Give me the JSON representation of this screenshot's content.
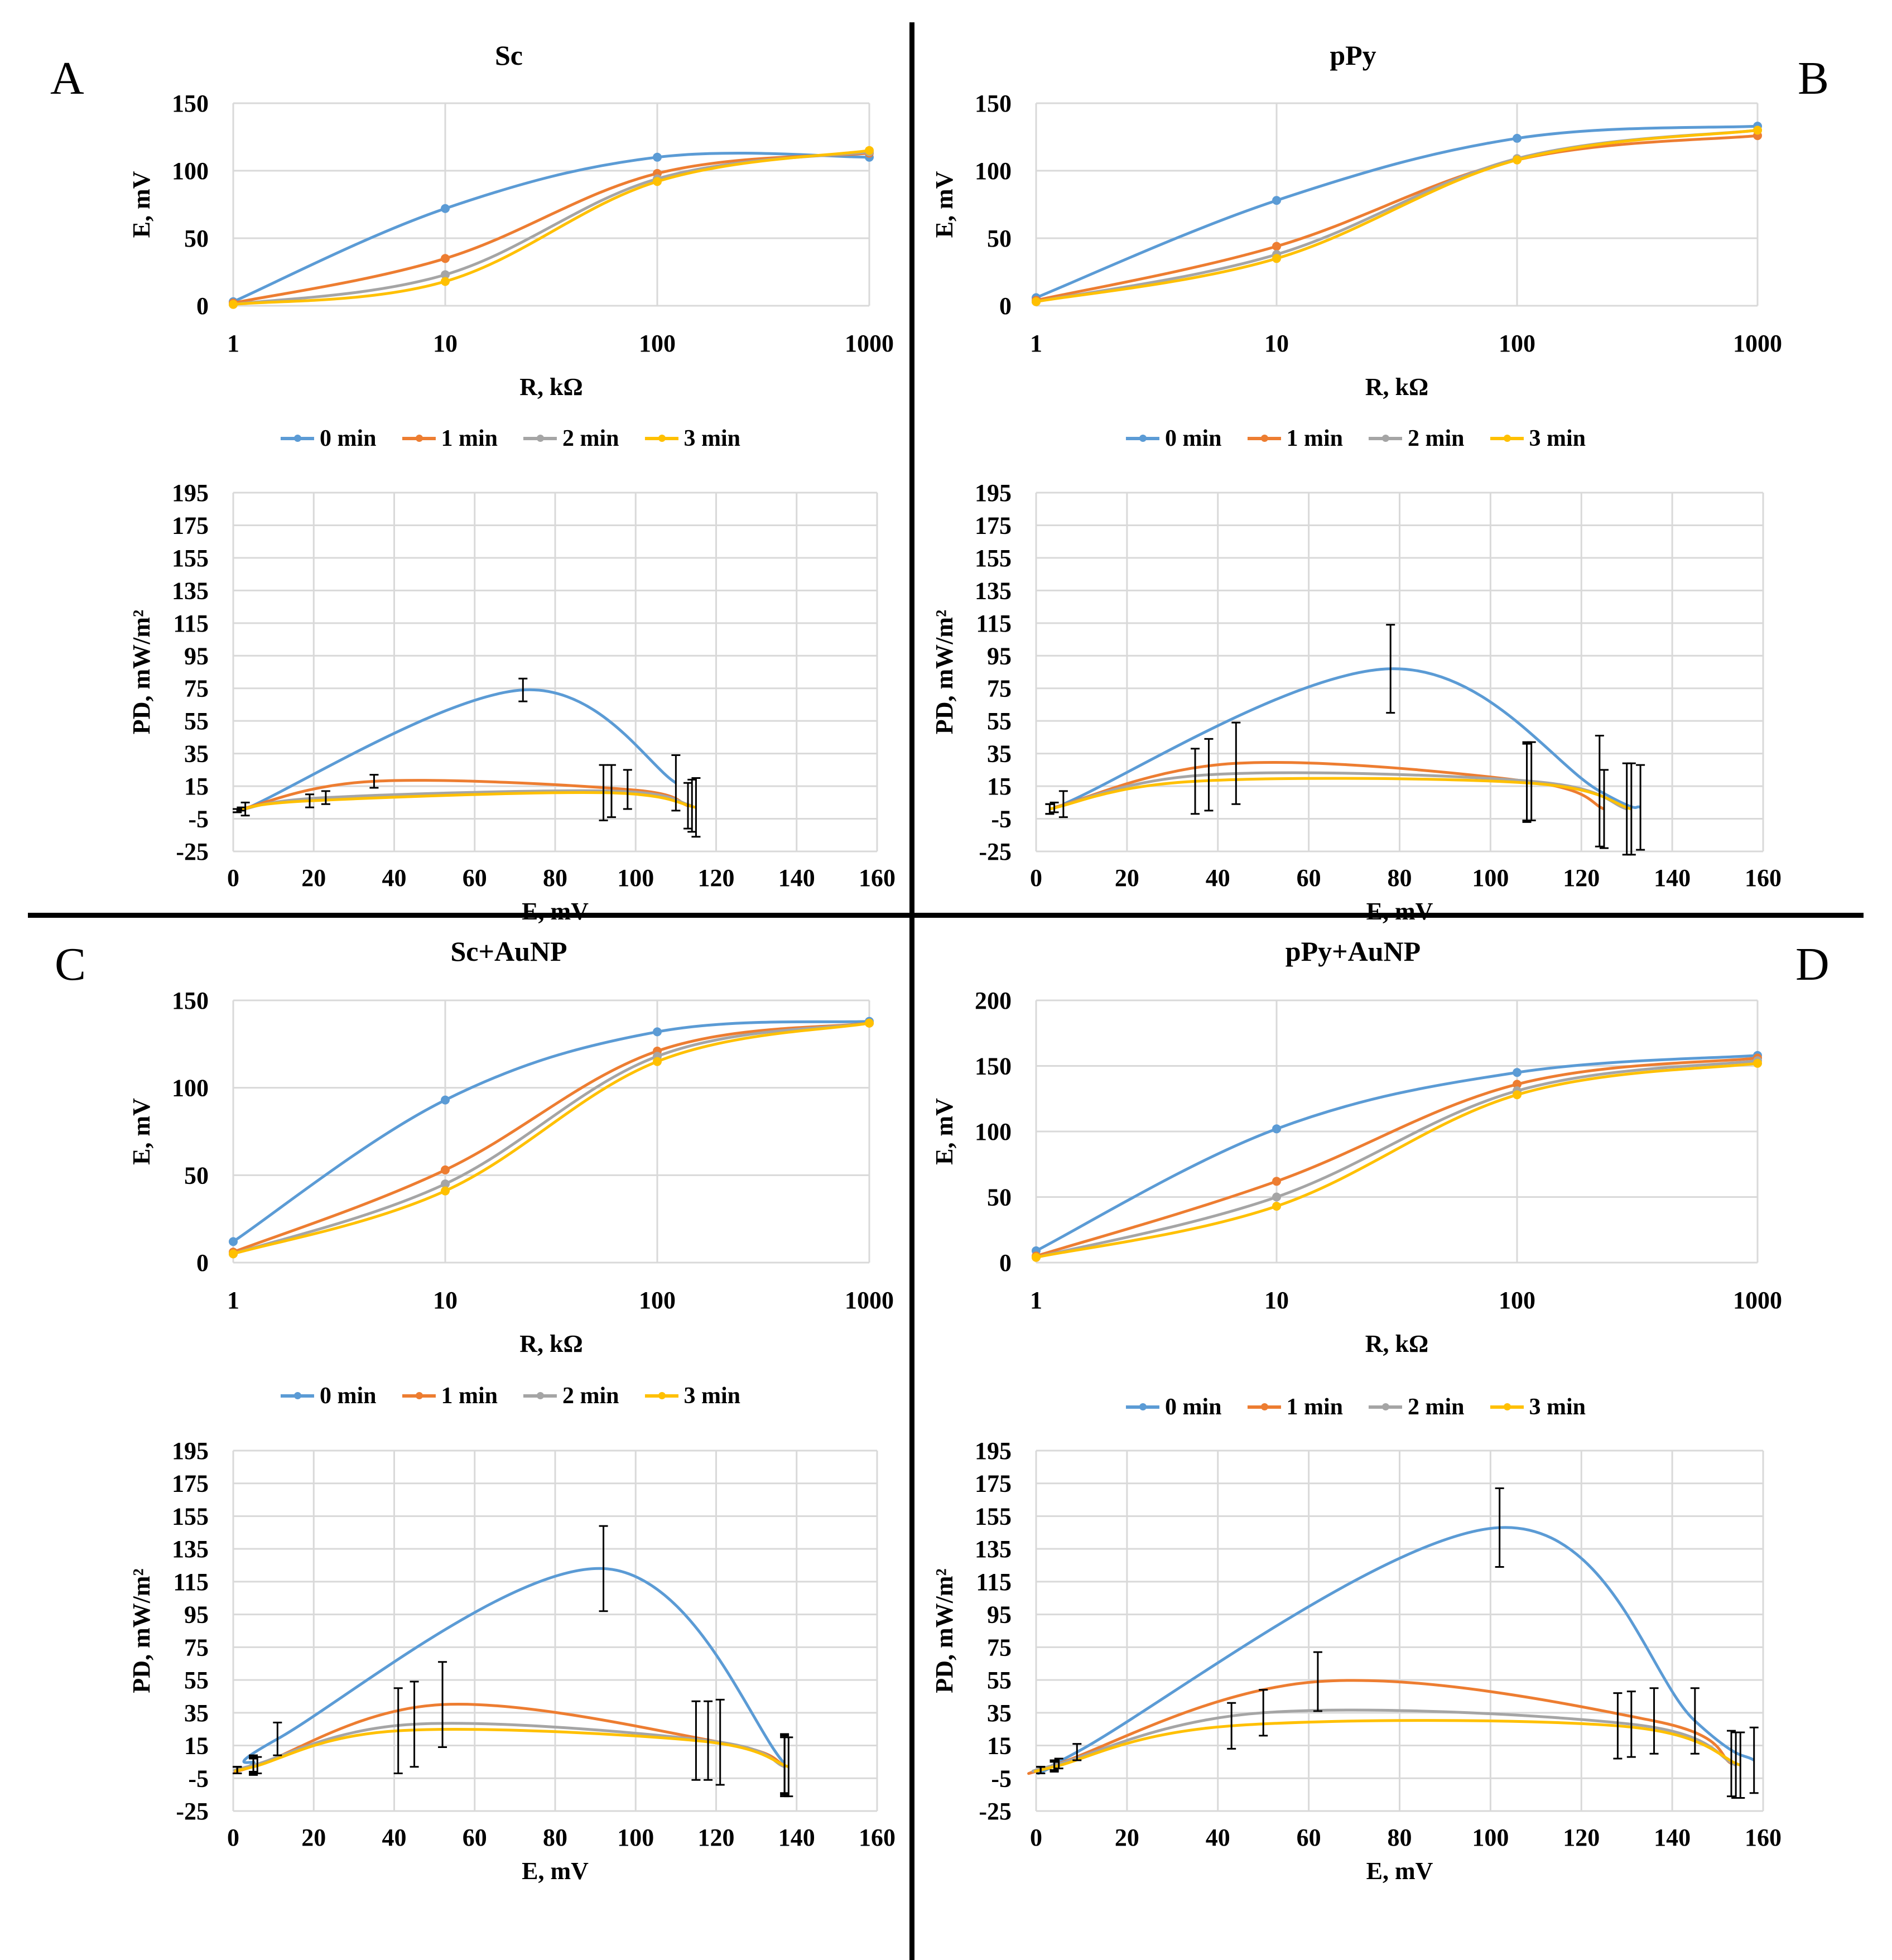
{
  "colors": {
    "s0": "#5b9bd5",
    "s1": "#ed7d31",
    "s2": "#a5a5a5",
    "s3": "#ffc000",
    "grid": "#d9d9d9",
    "text": "#000000"
  },
  "legend_labels": [
    "0 min",
    "1 min",
    "2 min",
    "3 min"
  ],
  "panels": [
    {
      "letter": "A",
      "title": "Sc"
    },
    {
      "letter": "B",
      "title": "pPy"
    },
    {
      "letter": "C",
      "title": "Sc+AuNP"
    },
    {
      "letter": "D",
      "title": "pPy+AuNP"
    }
  ],
  "chart_data": [
    {
      "panel": "A",
      "kind": "ER",
      "type": "line",
      "title": "Sc",
      "xlabel": "R, kΩ",
      "ylabel": "E, mV",
      "xscale": "log",
      "xlim": [
        1,
        1000
      ],
      "ylim": [
        0,
        150
      ],
      "xticks": [
        1,
        10,
        100,
        1000
      ],
      "yticks": [
        0,
        50,
        100,
        150
      ],
      "x": [
        1,
        10,
        100,
        1000
      ],
      "series": [
        {
          "name": "0 min",
          "values": [
            3,
            72,
            110,
            110
          ]
        },
        {
          "name": "1 min",
          "values": [
            2,
            35,
            98,
            113
          ]
        },
        {
          "name": "2 min",
          "values": [
            1,
            23,
            94,
            114
          ]
        },
        {
          "name": "3 min",
          "values": [
            1,
            18,
            92,
            115
          ]
        }
      ]
    },
    {
      "panel": "A",
      "kind": "PD",
      "type": "line",
      "xlabel": "E, mV",
      "ylabel": "PD, mW/m²",
      "xlim": [
        0,
        160
      ],
      "ylim": [
        -25,
        195
      ],
      "xticks": [
        0,
        20,
        40,
        60,
        80,
        100,
        120,
        140,
        160
      ],
      "yticks": [
        -25,
        -5,
        15,
        35,
        55,
        75,
        95,
        115,
        135,
        155,
        175,
        195
      ],
      "series": [
        {
          "name": "0 min",
          "points": [
            [
              3,
              1
            ],
            [
              72,
              74
            ],
            [
              110,
              17
            ]
          ],
          "errors": [
            4,
            7,
            17
          ]
        },
        {
          "name": "1 min",
          "points": [
            [
              2,
              1
            ],
            [
              35,
              18
            ],
            [
              98,
              13
            ],
            [
              113,
              3
            ]
          ],
          "errors": [
            1,
            4,
            12,
            14
          ]
        },
        {
          "name": "2 min",
          "points": [
            [
              1,
              0
            ],
            [
              23,
              8
            ],
            [
              94,
              12
            ],
            [
              114,
              3
            ]
          ],
          "errors": [
            1,
            4,
            16,
            16
          ]
        },
        {
          "name": "3 min",
          "points": [
            [
              1,
              0
            ],
            [
              19,
              6
            ],
            [
              92,
              11
            ],
            [
              115,
              2
            ]
          ],
          "errors": [
            1,
            4,
            17,
            18
          ]
        }
      ]
    },
    {
      "panel": "B",
      "kind": "ER",
      "type": "line",
      "title": "pPy",
      "xlabel": "R, kΩ",
      "ylabel": "E, mV",
      "xscale": "log",
      "xlim": [
        1,
        1000
      ],
      "ylim": [
        0,
        150
      ],
      "xticks": [
        1,
        10,
        100,
        1000
      ],
      "yticks": [
        0,
        50,
        100,
        150
      ],
      "x": [
        1,
        10,
        100,
        1000
      ],
      "series": [
        {
          "name": "0 min",
          "values": [
            6,
            78,
            124,
            133
          ]
        },
        {
          "name": "1 min",
          "values": [
            4,
            44,
            108,
            126
          ]
        },
        {
          "name": "2 min",
          "values": [
            3,
            38,
            109,
            130
          ]
        },
        {
          "name": "3 min",
          "values": [
            3,
            35,
            108,
            130
          ]
        }
      ]
    },
    {
      "panel": "B",
      "kind": "PD",
      "type": "line",
      "xlabel": "E, mV",
      "ylabel": "PD, mW/m²",
      "xlim": [
        0,
        160
      ],
      "ylim": [
        -25,
        195
      ],
      "xticks": [
        0,
        20,
        40,
        60,
        80,
        100,
        120,
        140,
        160
      ],
      "yticks": [
        -25,
        -5,
        15,
        35,
        55,
        75,
        95,
        115,
        135,
        155,
        175,
        195
      ],
      "series": [
        {
          "name": "0 min",
          "points": [
            [
              6,
              4
            ],
            [
              78,
              87
            ],
            [
              124,
              12
            ],
            [
              133,
              2
            ]
          ],
          "errors": [
            8,
            27,
            34,
            26
          ]
        },
        {
          "name": "1 min",
          "points": [
            [
              4,
              2
            ],
            [
              44,
              29
            ],
            [
              108,
              18
            ],
            [
              125,
              1
            ]
          ],
          "errors": [
            3,
            25,
            24,
            24
          ]
        },
        {
          "name": "2 min",
          "points": [
            [
              3,
              1
            ],
            [
              38,
              22
            ],
            [
              109,
              18
            ],
            [
              130,
              1
            ]
          ],
          "errors": [
            3,
            22,
            24,
            28
          ]
        },
        {
          "name": "3 min",
          "points": [
            [
              3,
              1
            ],
            [
              35,
              18
            ],
            [
              108,
              17
            ],
            [
              131,
              1
            ]
          ],
          "errors": [
            3,
            20,
            24,
            28
          ]
        }
      ]
    },
    {
      "panel": "C",
      "kind": "ER",
      "type": "line",
      "title": "Sc+AuNP",
      "xlabel": "R, kΩ",
      "ylabel": "E, mV",
      "xscale": "log",
      "xlim": [
        1,
        1000
      ],
      "ylim": [
        0,
        150
      ],
      "xticks": [
        1,
        10,
        100,
        1000
      ],
      "yticks": [
        0,
        50,
        100,
        150
      ],
      "x": [
        1,
        10,
        100,
        1000
      ],
      "series": [
        {
          "name": "0 min",
          "values": [
            12,
            93,
            132,
            138
          ]
        },
        {
          "name": "1 min",
          "values": [
            6,
            53,
            121,
            137
          ]
        },
        {
          "name": "2 min",
          "values": [
            5,
            45,
            118,
            137
          ]
        },
        {
          "name": "3 min",
          "values": [
            5,
            41,
            115,
            137
          ]
        }
      ]
    },
    {
      "panel": "C",
      "kind": "PD",
      "type": "line",
      "xlabel": "E, mV",
      "ylabel": "PD, mW/m²",
      "xlim": [
        0,
        160
      ],
      "ylim": [
        -25,
        195
      ],
      "xticks": [
        0,
        20,
        40,
        60,
        80,
        100,
        120,
        140,
        160
      ],
      "yticks": [
        -25,
        -5,
        15,
        35,
        55,
        75,
        95,
        115,
        135,
        155,
        175,
        195
      ],
      "series": [
        {
          "name": "0 min",
          "points": [
            [
              1,
              0
            ],
            [
              5,
              4
            ],
            [
              11,
              19
            ],
            [
              92,
              123
            ],
            [
              137,
              4
            ]
          ],
          "errors": [
            2,
            5,
            10,
            26,
            18
          ]
        },
        {
          "name": "1 min",
          "points": [
            [
              1,
              0
            ],
            [
              6,
              3
            ],
            [
              52,
              40
            ],
            [
              121,
              17
            ],
            [
              137,
              3
            ]
          ],
          "errors": [
            2,
            5,
            26,
            26,
            18
          ]
        },
        {
          "name": "2 min",
          "points": [
            [
              1,
              0
            ],
            [
              5,
              3
            ],
            [
              45,
              28
            ],
            [
              118,
              18
            ],
            [
              137,
              2
            ]
          ],
          "errors": [
            2,
            5,
            26,
            24,
            18
          ]
        },
        {
          "name": "3 min",
          "points": [
            [
              1,
              0
            ],
            [
              5,
              2
            ],
            [
              41,
              24
            ],
            [
              115,
              18
            ],
            [
              138,
              2
            ]
          ],
          "errors": [
            2,
            5,
            26,
            24,
            18
          ]
        }
      ]
    },
    {
      "panel": "D",
      "kind": "ER",
      "type": "line",
      "title": "pPy+AuNP",
      "xlabel": "R, kΩ",
      "ylabel": "E, mV",
      "xscale": "log",
      "xlim": [
        1,
        1000
      ],
      "ylim": [
        0,
        200
      ],
      "xticks": [
        1,
        10,
        100,
        1000
      ],
      "yticks": [
        0,
        50,
        100,
        150,
        200
      ],
      "x": [
        1,
        10,
        100,
        1000
      ],
      "series": [
        {
          "name": "0 min",
          "values": [
            9,
            102,
            145,
            158
          ]
        },
        {
          "name": "1 min",
          "values": [
            5,
            62,
            136,
            156
          ]
        },
        {
          "name": "2 min",
          "values": [
            4,
            50,
            131,
            154
          ]
        },
        {
          "name": "3 min",
          "values": [
            4,
            43,
            128,
            152
          ]
        }
      ]
    },
    {
      "panel": "D",
      "kind": "PD",
      "type": "line",
      "xlabel": "E, mV",
      "ylabel": "PD, mW/m²",
      "xlim": [
        0,
        160
      ],
      "ylim": [
        -25,
        195
      ],
      "xticks": [
        0,
        20,
        40,
        60,
        80,
        100,
        120,
        140,
        160
      ],
      "yticks": [
        -25,
        -5,
        15,
        35,
        55,
        75,
        95,
        115,
        135,
        155,
        175,
        195
      ],
      "series": [
        {
          "name": "0 min",
          "points": [
            [
              1,
              0
            ],
            [
              5,
              4
            ],
            [
              9,
              11
            ],
            [
              102,
              148
            ],
            [
              145,
              30
            ],
            [
              158,
              6
            ]
          ],
          "errors": [
            2,
            3,
            5,
            24,
            20,
            20
          ]
        },
        {
          "name": "1 min",
          "points": [
            [
              1,
              0
            ],
            [
              4,
              3
            ],
            [
              62,
              54
            ],
            [
              136,
              30
            ],
            [
              153,
              4
            ]
          ],
          "errors": [
            2,
            3,
            18,
            20,
            20
          ]
        },
        {
          "name": "2 min",
          "points": [
            [
              1,
              0
            ],
            [
              4,
              3
            ],
            [
              50,
              35
            ],
            [
              131,
              28
            ],
            [
              154,
              3
            ]
          ],
          "errors": [
            2,
            3,
            14,
            20,
            20
          ]
        },
        {
          "name": "3 min",
          "points": [
            [
              1,
              0
            ],
            [
              4,
              2
            ],
            [
              43,
              27
            ],
            [
              128,
              27
            ],
            [
              155,
              3
            ]
          ],
          "errors": [
            2,
            3,
            14,
            20,
            20
          ]
        }
      ]
    }
  ]
}
